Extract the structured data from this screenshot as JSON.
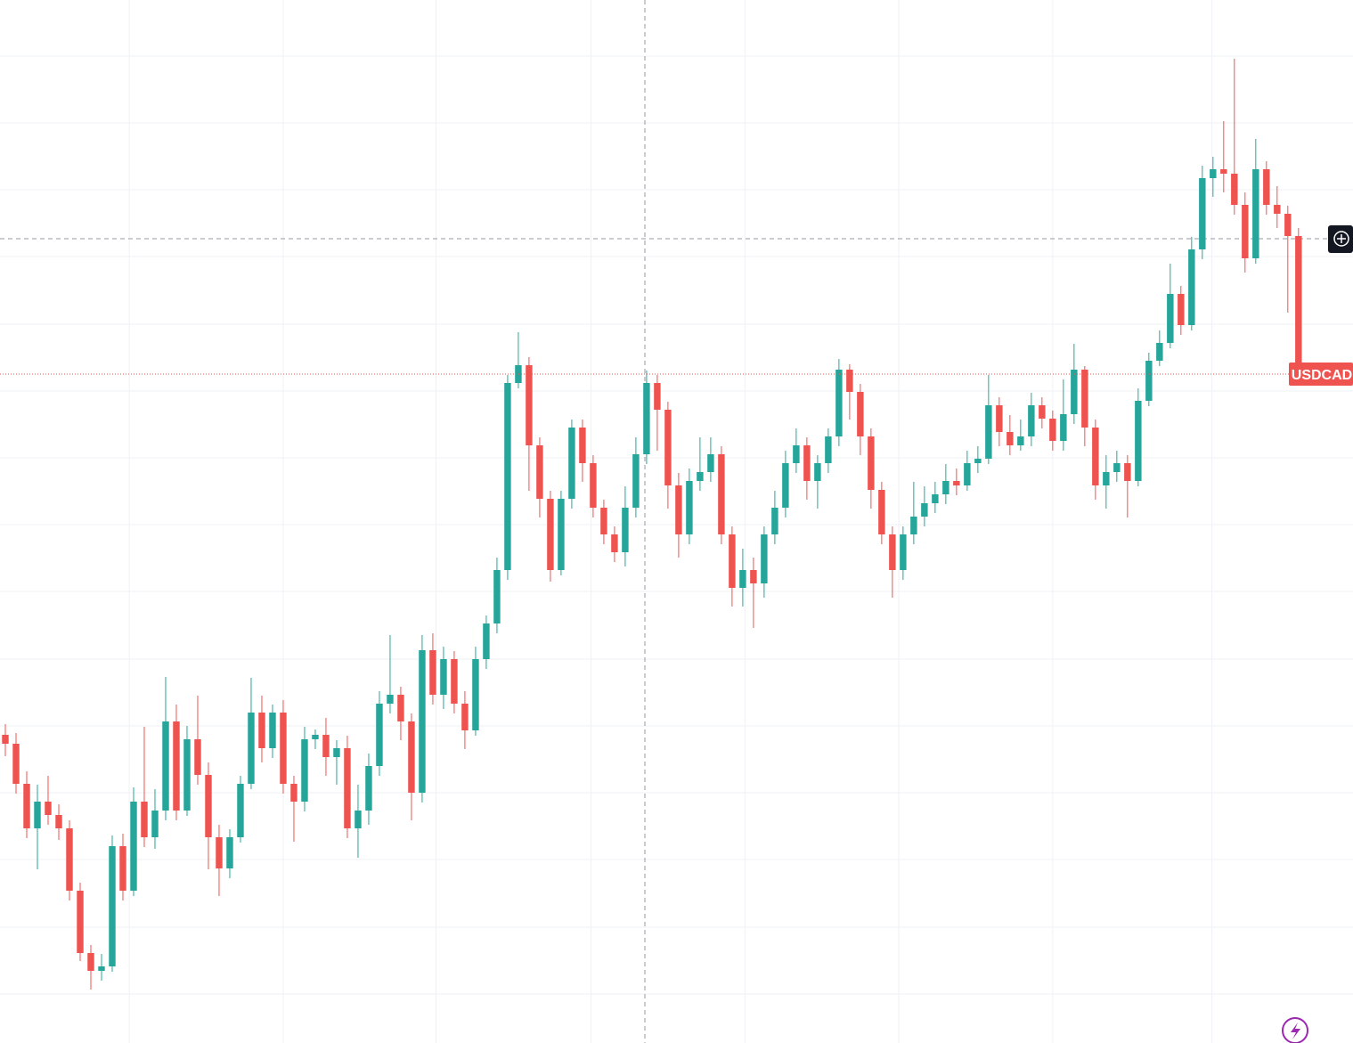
{
  "chart_data": {
    "type": "candlestick",
    "symbol": "USDCAD",
    "up_color": "#26a69a",
    "down_color": "#ef5350",
    "grid": true,
    "ylim": [
      0,
      1171
    ],
    "yticks": [
      55,
      130,
      206,
      281,
      356,
      431,
      507,
      582,
      657,
      732,
      807,
      883,
      958,
      1033,
      1108
    ],
    "xlim": [
      -0.5,
      126.1
    ],
    "xticks": [
      11.6,
      26,
      40.3,
      54.8,
      69.2,
      83.6,
      98,
      112.9
    ],
    "categories": [
      null,
      null,
      null,
      null,
      null,
      null,
      null,
      null,
      null,
      null,
      null,
      null,
      null,
      null,
      null,
      null,
      null,
      null,
      null,
      null,
      null,
      null,
      null,
      null,
      null,
      null,
      null,
      null,
      null,
      null,
      null,
      null,
      null,
      null,
      null,
      null,
      null,
      null,
      null,
      null,
      null,
      null,
      null,
      null,
      null,
      null,
      null,
      null,
      null,
      null,
      null,
      null,
      null,
      null,
      null,
      null,
      null,
      null,
      null,
      null,
      null,
      null,
      null,
      null,
      null,
      null,
      null,
      null,
      null,
      null,
      null,
      null,
      null,
      null,
      null,
      null,
      null,
      null,
      null,
      null,
      null,
      null,
      null,
      null,
      null,
      null,
      null,
      null,
      null,
      null,
      null,
      null,
      null,
      null,
      null,
      null,
      null,
      null,
      null,
      null,
      null,
      null,
      null,
      null,
      null,
      null,
      null,
      null,
      null,
      null,
      null,
      null,
      null,
      null,
      null,
      null,
      null,
      null,
      null,
      null,
      null,
      null
    ],
    "open": [
      346,
      336,
      291,
      241,
      271,
      256,
      241,
      171,
      101,
      81,
      86,
      221,
      171,
      271,
      231,
      261,
      361,
      261,
      341,
      301,
      231,
      196,
      231,
      291,
      371,
      331,
      371,
      291,
      271,
      341,
      346,
      321,
      331,
      241,
      261,
      311,
      381,
      391,
      361,
      281,
      441,
      391,
      431,
      381,
      351,
      431,
      471,
      531,
      741,
      761,
      671,
      611,
      531,
      611,
      691,
      651,
      601,
      571,
      551,
      601,
      661,
      741,
      711,
      626,
      571,
      631,
      641,
      661,
      571,
      511,
      531,
      516,
      571,
      601,
      651,
      671,
      631,
      651,
      681,
      756,
      731,
      681,
      621,
      571,
      531,
      571,
      591,
      606,
      616,
      631,
      626,
      651,
      656,
      716,
      686,
      671,
      681,
      716,
      701,
      676,
      706,
      756,
      691,
      626,
      641,
      651,
      631,
      721,
      766,
      786,
      841,
      806,
      891,
      971,
      981,
      976,
      941,
      881,
      981,
      941,
      931,
      906
    ],
    "high": [
      358,
      348,
      305,
      290,
      300,
      268,
      250,
      180,
      110,
      100,
      233,
      235,
      287,
      355,
      285,
      411,
      380,
      356,
      390,
      315,
      245,
      240,
      300,
      410,
      390,
      380,
      385,
      300,
      355,
      352,
      365,
      340,
      345,
      290,
      325,
      395,
      458,
      400,
      370,
      458,
      460,
      445,
      440,
      395,
      445,
      480,
      545,
      750,
      798,
      770,
      680,
      620,
      620,
      700,
      700,
      660,
      610,
      580,
      625,
      680,
      755,
      750,
      720,
      640,
      645,
      680,
      680,
      670,
      580,
      555,
      545,
      580,
      620,
      665,
      690,
      680,
      660,
      690,
      768,
      762,
      740,
      690,
      630,
      580,
      580,
      630,
      625,
      630,
      650,
      645,
      665,
      670,
      750,
      725,
      705,
      700,
      730,
      725,
      710,
      745,
      785,
      760,
      700,
      660,
      665,
      660,
      735,
      775,
      800,
      875,
      850,
      905,
      985,
      995,
      1035,
      1105,
      955,
      1015,
      990,
      962,
      940,
      915
    ],
    "low": [
      322,
      280,
      230,
      195,
      245,
      228,
      160,
      92,
      60,
      70,
      80,
      160,
      165,
      220,
      218,
      250,
      250,
      255,
      290,
      195,
      165,
      185,
      225,
      285,
      315,
      320,
      280,
      226,
      260,
      330,
      300,
      290,
      230,
      208,
      245,
      300,
      370,
      340,
      250,
      270,
      380,
      375,
      370,
      330,
      345,
      420,
      460,
      520,
      735,
      620,
      590,
      518,
      525,
      600,
      630,
      590,
      560,
      540,
      535,
      590,
      650,
      665,
      600,
      545,
      560,
      620,
      630,
      560,
      490,
      490,
      466,
      500,
      560,
      590,
      640,
      610,
      600,
      640,
      670,
      700,
      660,
      600,
      560,
      500,
      520,
      560,
      580,
      595,
      605,
      615,
      620,
      640,
      650,
      670,
      660,
      665,
      670,
      690,
      665,
      665,
      695,
      670,
      610,
      600,
      630,
      590,
      625,
      715,
      760,
      780,
      795,
      800,
      880,
      950,
      955,
      930,
      865,
      875,
      930,
      915,
      820,
      745
    ],
    "close": [
      336,
      291,
      241,
      271,
      256,
      241,
      171,
      101,
      81,
      86,
      221,
      171,
      271,
      231,
      261,
      361,
      261,
      341,
      301,
      231,
      196,
      231,
      291,
      371,
      331,
      371,
      291,
      271,
      341,
      346,
      321,
      331,
      241,
      261,
      311,
      381,
      391,
      361,
      281,
      441,
      391,
      431,
      381,
      351,
      431,
      471,
      531,
      741,
      761,
      671,
      611,
      531,
      611,
      691,
      651,
      601,
      571,
      551,
      601,
      661,
      741,
      711,
      626,
      571,
      631,
      641,
      661,
      571,
      511,
      531,
      516,
      571,
      601,
      651,
      671,
      631,
      651,
      681,
      756,
      731,
      681,
      621,
      571,
      531,
      571,
      591,
      606,
      616,
      631,
      626,
      651,
      656,
      716,
      686,
      671,
      681,
      716,
      701,
      676,
      706,
      756,
      691,
      626,
      641,
      651,
      631,
      721,
      766,
      786,
      841,
      806,
      891,
      971,
      981,
      976,
      941,
      881,
      981,
      941,
      931,
      906,
      751
    ]
  }
}
